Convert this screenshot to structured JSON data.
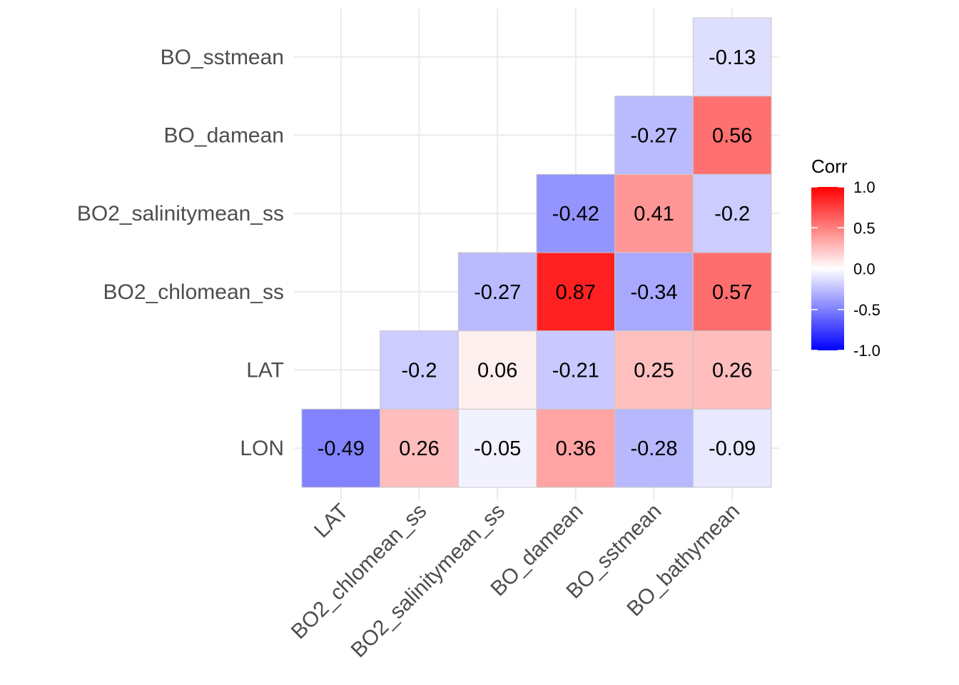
{
  "chart_data": {
    "type": "heatmap",
    "x_categories": [
      "LAT",
      "BO2_chlomean_ss",
      "BO2_salinitymean_ss",
      "BO_damean",
      "BO_sstmean",
      "BO_bathymean"
    ],
    "y_categories": [
      "LON",
      "LAT",
      "BO2_chlomean_ss",
      "BO2_salinitymean_ss",
      "BO_damean",
      "BO_sstmean"
    ],
    "cells": [
      {
        "x": "LAT",
        "y": "LON",
        "value": -0.49,
        "label": "-0.49"
      },
      {
        "x": "BO2_chlomean_ss",
        "y": "LON",
        "value": 0.26,
        "label": "0.26"
      },
      {
        "x": "BO2_salinitymean_ss",
        "y": "LON",
        "value": -0.05,
        "label": "-0.05"
      },
      {
        "x": "BO_damean",
        "y": "LON",
        "value": 0.36,
        "label": "0.36"
      },
      {
        "x": "BO_sstmean",
        "y": "LON",
        "value": -0.28,
        "label": "-0.28"
      },
      {
        "x": "BO_bathymean",
        "y": "LON",
        "value": -0.09,
        "label": "-0.09"
      },
      {
        "x": "BO2_chlomean_ss",
        "y": "LAT",
        "value": -0.2,
        "label": "-0.2"
      },
      {
        "x": "BO2_salinitymean_ss",
        "y": "LAT",
        "value": 0.06,
        "label": "0.06"
      },
      {
        "x": "BO_damean",
        "y": "LAT",
        "value": -0.21,
        "label": "-0.21"
      },
      {
        "x": "BO_sstmean",
        "y": "LAT",
        "value": 0.25,
        "label": "0.25"
      },
      {
        "x": "BO_bathymean",
        "y": "LAT",
        "value": 0.26,
        "label": "0.26"
      },
      {
        "x": "BO2_salinitymean_ss",
        "y": "BO2_chlomean_ss",
        "value": -0.27,
        "label": "-0.27"
      },
      {
        "x": "BO_damean",
        "y": "BO2_chlomean_ss",
        "value": 0.87,
        "label": "0.87"
      },
      {
        "x": "BO_sstmean",
        "y": "BO2_chlomean_ss",
        "value": -0.34,
        "label": "-0.34"
      },
      {
        "x": "BO_bathymean",
        "y": "BO2_chlomean_ss",
        "value": 0.57,
        "label": "0.57"
      },
      {
        "x": "BO_damean",
        "y": "BO2_salinitymean_ss",
        "value": -0.42,
        "label": "-0.42"
      },
      {
        "x": "BO_sstmean",
        "y": "BO2_salinitymean_ss",
        "value": 0.41,
        "label": "0.41"
      },
      {
        "x": "BO_bathymean",
        "y": "BO2_salinitymean_ss",
        "value": -0.2,
        "label": "-0.2"
      },
      {
        "x": "BO_sstmean",
        "y": "BO_damean",
        "value": -0.27,
        "label": "-0.27"
      },
      {
        "x": "BO_bathymean",
        "y": "BO_damean",
        "value": 0.56,
        "label": "0.56"
      },
      {
        "x": "BO_bathymean",
        "y": "BO_sstmean",
        "value": -0.13,
        "label": "-0.13"
      }
    ],
    "legend": {
      "title": "Corr",
      "placement": "right",
      "range": [
        -1,
        1
      ],
      "ticks": [
        1.0,
        0.5,
        0.0,
        -0.5,
        -1.0
      ],
      "tick_labels": [
        "1.0",
        "0.5",
        "0.0",
        "-0.5",
        "-1.0"
      ]
    },
    "colors": {
      "low": "#0000ff",
      "mid": "#ffffff",
      "high": "#ff0000"
    },
    "grid": true,
    "title": "",
    "xlabel": "",
    "ylabel": ""
  }
}
